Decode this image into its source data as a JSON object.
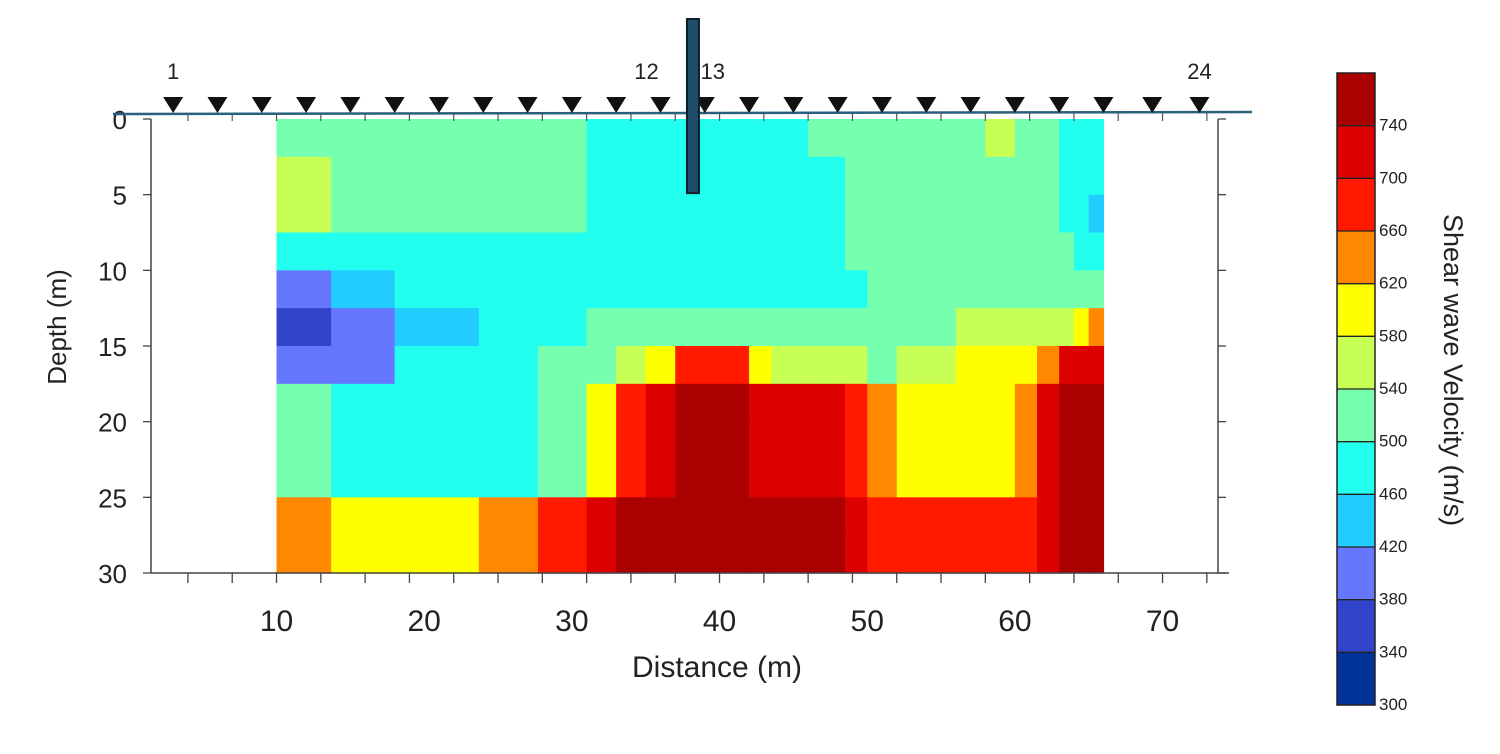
{
  "chart_data": {
    "type": "heatmap",
    "title": "",
    "xlabel": "Distance (m)",
    "ylabel": "Depth (m)",
    "colorbar_label": "Shear wave Velocity  (m/s)",
    "xlim": [
      1.5,
      74.5
    ],
    "ylim": [
      30,
      0
    ],
    "x_ticks": [
      10,
      20,
      30,
      40,
      50,
      60,
      70
    ],
    "y_ticks": [
      0,
      5,
      10,
      15,
      20,
      25,
      30
    ],
    "data_extent_x": [
      10,
      66
    ],
    "x_bounds": [
      10,
      13.7,
      18,
      23.7,
      27.7,
      31,
      33,
      35,
      37,
      42,
      43.5,
      46,
      48.5,
      50,
      52,
      56,
      58,
      60,
      61.5,
      63,
      64,
      65,
      66
    ],
    "y_bounds": [
      0,
      2.5,
      5,
      7.5,
      10,
      12.5,
      15,
      17.5,
      20,
      22.5,
      25,
      27.5,
      30
    ],
    "colorbar": {
      "label": "Shear wave Velocity  (m/s)",
      "levels": [
        300,
        340,
        380,
        420,
        460,
        500,
        540,
        580,
        620,
        660,
        700,
        740,
        780
      ],
      "tick_labels": [
        "300",
        "340",
        "380",
        "420",
        "460",
        "500",
        "540",
        "580",
        "620",
        "660",
        "700",
        "740"
      ],
      "colors": [
        "#003399",
        "#3344cc",
        "#6677ff",
        "#22ccff",
        "#22ffee",
        "#77ffb0",
        "#c8ff55",
        "#ffff00",
        "#ff8800",
        "#ff1a00",
        "#dd0000",
        "#aa0000"
      ]
    },
    "values": [
      [
        500,
        500,
        500,
        500,
        500,
        460,
        460,
        460,
        460,
        460,
        460,
        500,
        500,
        500,
        500,
        500,
        540,
        500,
        500,
        460,
        460,
        460
      ],
      [
        540,
        500,
        500,
        500,
        500,
        460,
        460,
        460,
        460,
        460,
        460,
        460,
        500,
        500,
        500,
        500,
        500,
        500,
        500,
        460,
        460,
        460
      ],
      [
        540,
        500,
        500,
        500,
        500,
        460,
        460,
        460,
        460,
        460,
        460,
        460,
        500,
        500,
        500,
        500,
        500,
        500,
        500,
        460,
        460,
        420
      ],
      [
        460,
        460,
        460,
        460,
        460,
        460,
        460,
        460,
        460,
        460,
        460,
        460,
        500,
        500,
        500,
        500,
        500,
        500,
        500,
        500,
        460,
        460
      ],
      [
        380,
        420,
        460,
        460,
        460,
        460,
        460,
        460,
        460,
        460,
        460,
        460,
        460,
        500,
        500,
        500,
        500,
        500,
        500,
        500,
        500,
        500
      ],
      [
        340,
        380,
        420,
        460,
        460,
        500,
        500,
        500,
        500,
        500,
        500,
        500,
        500,
        500,
        500,
        540,
        540,
        540,
        540,
        540,
        580,
        620
      ],
      [
        380,
        380,
        460,
        460,
        500,
        500,
        540,
        580,
        660,
        580,
        540,
        540,
        540,
        500,
        540,
        580,
        580,
        580,
        620,
        700,
        700,
        700
      ],
      [
        500,
        460,
        460,
        460,
        500,
        580,
        660,
        700,
        740,
        700,
        700,
        700,
        660,
        620,
        580,
        580,
        580,
        620,
        700,
        740,
        740,
        740
      ],
      [
        500,
        460,
        460,
        460,
        500,
        580,
        660,
        700,
        740,
        700,
        700,
        700,
        660,
        620,
        580,
        580,
        580,
        620,
        700,
        740,
        740,
        740
      ],
      [
        500,
        460,
        460,
        460,
        500,
        580,
        660,
        700,
        740,
        700,
        700,
        700,
        660,
        620,
        580,
        580,
        580,
        620,
        700,
        740,
        740,
        740
      ],
      [
        620,
        580,
        580,
        620,
        660,
        700,
        740,
        740,
        740,
        740,
        740,
        740,
        700,
        660,
        660,
        660,
        660,
        660,
        700,
        740,
        740,
        740
      ],
      [
        620,
        580,
        580,
        620,
        660,
        700,
        740,
        740,
        740,
        740,
        740,
        740,
        700,
        660,
        660,
        660,
        660,
        660,
        700,
        740,
        740,
        740
      ]
    ],
    "annotations": {
      "geophones": [
        3,
        6,
        9,
        12,
        15,
        18,
        21,
        24,
        27,
        30,
        33,
        36,
        39,
        42,
        45,
        48,
        51,
        54,
        57,
        60,
        63,
        66,
        69.3,
        72.5
      ],
      "geophone_labels": [
        {
          "text": "1",
          "index": 0
        },
        {
          "text": "12",
          "index": 11
        },
        {
          "text": "13",
          "index": 12
        },
        {
          "text": "24",
          "index": 23
        }
      ],
      "borehole": {
        "x": 38.2,
        "depth_top": -6.5,
        "depth_bottom": 4.9
      }
    }
  }
}
